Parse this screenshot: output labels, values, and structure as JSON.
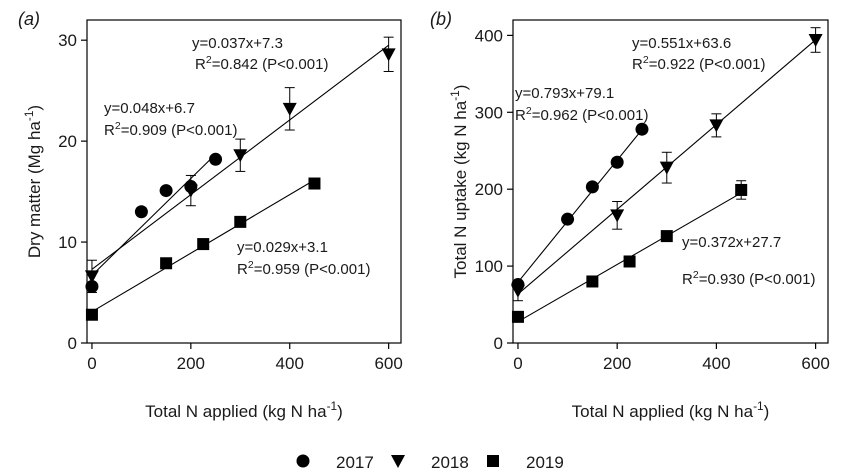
{
  "chart_data": [
    {
      "type": "scatter",
      "panel_label": "(a)",
      "xlabel": "Total N applied (kg N ha",
      "xlabel_sup": "-1",
      "xlabel_end": ")",
      "ylabel": "Dry matter (Mg ha",
      "ylabel_sup": "-1",
      "ylabel_end": ")",
      "xlim": [
        -10,
        625
      ],
      "ylim": [
        0,
        32
      ],
      "xticks": [
        0,
        200,
        400,
        600
      ],
      "yticks": [
        0,
        10,
        20,
        30
      ],
      "grid": false,
      "series": [
        {
          "name": "2017",
          "marker": "circle",
          "x": [
            0,
            100,
            150,
            200,
            250
          ],
          "y": [
            5.6,
            13.0,
            15.1,
            15.5,
            18.2
          ],
          "err": [
            0,
            0,
            0,
            0,
            0
          ],
          "fit": {
            "slope": 0.048,
            "intercept": 6.7,
            "x_range": [
              0,
              250
            ]
          }
        },
        {
          "name": "2018",
          "marker": "triangle-down",
          "x": [
            0,
            200,
            300,
            400,
            600
          ],
          "y": [
            6.6,
            15.1,
            18.6,
            23.2,
            28.6
          ],
          "err": [
            1.6,
            1.5,
            1.6,
            2.1,
            1.7
          ],
          "fit": {
            "slope": 0.037,
            "intercept": 7.3,
            "x_range": [
              0,
              600
            ]
          }
        },
        {
          "name": "2019",
          "marker": "square",
          "x": [
            0,
            150,
            225,
            300,
            450
          ],
          "y": [
            2.8,
            7.9,
            9.8,
            12.0,
            15.8
          ],
          "err": [
            0,
            0,
            0,
            0,
            0
          ],
          "fit": {
            "slope": 0.029,
            "intercept": 3.1,
            "x_range": [
              0,
              450
            ]
          }
        }
      ],
      "annotations": [
        {
          "eq": "y=0.037x+7.3",
          "r2": "=0.842 (P<0.001)"
        },
        {
          "eq": "y=0.048x+6.7",
          "r2": "=0.909 (P<0.001)"
        },
        {
          "eq": "y=0.029x+3.1",
          "r2": "=0.959 (P<0.001)"
        }
      ]
    },
    {
      "type": "scatter",
      "panel_label": "(b)",
      "xlabel": "Total N applied (kg N ha",
      "xlabel_sup": "-1",
      "xlabel_end": ")",
      "ylabel": "Total N uptake (kg N ha",
      "ylabel_sup": "-1",
      "ylabel_end": ")",
      "xlim": [
        -10,
        625
      ],
      "ylim": [
        0,
        420
      ],
      "xticks": [
        0,
        200,
        400,
        600
      ],
      "yticks": [
        0,
        100,
        200,
        300,
        400
      ],
      "grid": false,
      "series": [
        {
          "name": "2017",
          "marker": "circle",
          "x": [
            0,
            100,
            150,
            200,
            250
          ],
          "y": [
            76,
            161,
            203,
            235,
            278
          ],
          "err": [
            0,
            0,
            0,
            0,
            0
          ],
          "fit": {
            "slope": 0.793,
            "intercept": 79.1,
            "x_range": [
              0,
              250
            ]
          }
        },
        {
          "name": "2018",
          "marker": "triangle-down",
          "x": [
            0,
            200,
            300,
            400,
            600
          ],
          "y": [
            68,
            166,
            228,
            283,
            394
          ],
          "err": [
            13,
            18,
            20,
            15,
            16
          ],
          "fit": {
            "slope": 0.551,
            "intercept": 63.6,
            "x_range": [
              0,
              600
            ]
          }
        },
        {
          "name": "2019",
          "marker": "square",
          "x": [
            0,
            150,
            225,
            300,
            450
          ],
          "y": [
            34,
            80,
            106,
            139,
            199
          ],
          "err": [
            0,
            0,
            5,
            0,
            12
          ],
          "fit": {
            "slope": 0.372,
            "intercept": 27.7,
            "x_range": [
              0,
              450
            ]
          }
        }
      ],
      "annotations": [
        {
          "eq": "y=0.551x+63.6",
          "r2": "=0.922 (P<0.001)"
        },
        {
          "eq": "y=0.793x+79.1",
          "r2": "=0.962 (P<0.001)"
        },
        {
          "eq": "y=0.372x+27.7",
          "r2": "=0.930 (P<0.001)"
        }
      ]
    }
  ],
  "legend": {
    "placement": "bottom-center",
    "items": [
      {
        "label": "2017",
        "marker": "circle"
      },
      {
        "label": "2018",
        "marker": "triangle-down"
      },
      {
        "label": "2019",
        "marker": "square"
      }
    ]
  }
}
